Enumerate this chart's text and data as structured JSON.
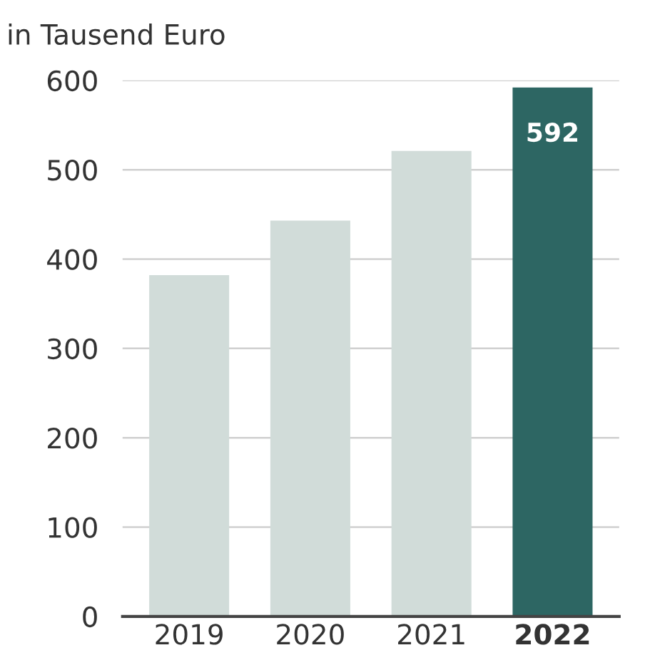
{
  "chart_data": {
    "type": "bar",
    "ylabel": "in Tausend Euro",
    "categories": [
      "2019",
      "2020",
      "2021",
      "2022"
    ],
    "values": [
      382,
      443,
      521,
      592
    ],
    "colors": [
      "#d1dcd9",
      "#d1dcd9",
      "#d1dcd9",
      "#2d6663"
    ],
    "value_labels": [
      null,
      null,
      null,
      "592"
    ],
    "ylim": [
      0,
      600
    ],
    "yticks": [
      0,
      100,
      200,
      300,
      400,
      500,
      600
    ],
    "grid": "y",
    "legend": false
  }
}
